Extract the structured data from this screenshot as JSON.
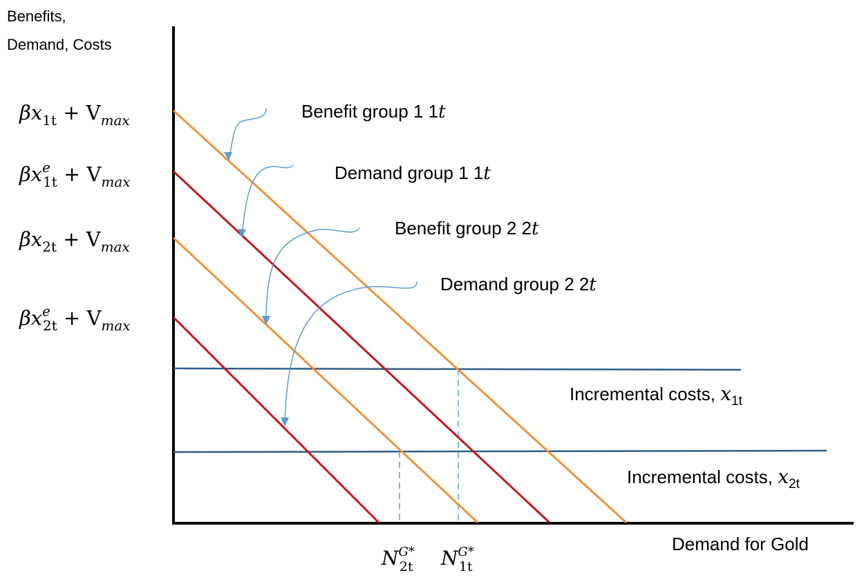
{
  "axes": {
    "y_label_line1": "Benefits,",
    "y_label_line2": "Demand, Costs",
    "x_label": "Demand for Gold"
  },
  "y_ticks": [
    {
      "base": "βx",
      "sub": "1t",
      "sup": "",
      "rest": " + V",
      "rest_sub": "max"
    },
    {
      "base": "βx",
      "sub": "1t",
      "sup": "e",
      "rest": " + V",
      "rest_sub": "max"
    },
    {
      "base": "βx",
      "sub": "2t",
      "sup": "",
      "rest": " + V",
      "rest_sub": "max"
    },
    {
      "base": "βx",
      "sub": "2t",
      "sup": "e",
      "rest": " + V",
      "rest_sub": "max"
    }
  ],
  "curves": [
    {
      "label": "Benefit group 1",
      "label_var": "t",
      "label_num": "1",
      "color": "#F0913B"
    },
    {
      "label": "Demand group 1",
      "label_var": "t",
      "label_num": "1",
      "color": "#C0181E"
    },
    {
      "label": "Benefit group 2",
      "label_var": "t",
      "label_num": "2",
      "color": "#F0913B"
    },
    {
      "label": "Demand group 2",
      "label_var": "t",
      "label_num": "2",
      "color": "#C0181E"
    }
  ],
  "cost_lines": [
    {
      "label": "Incremental costs, ",
      "var": "x",
      "sub": "1t",
      "color": "#2F5D86"
    },
    {
      "label": "Incremental costs, ",
      "var": "x",
      "sub": "2t",
      "color": "#2F5D86"
    }
  ],
  "equilibria": [
    {
      "base": "N",
      "sub": "2t",
      "sup": "G*"
    },
    {
      "base": "N",
      "sub": "1t",
      "sup": "G*"
    }
  ],
  "colors": {
    "arrow": "#5B9BD5",
    "axis": "#000000",
    "guide": "#5B9BD5"
  }
}
